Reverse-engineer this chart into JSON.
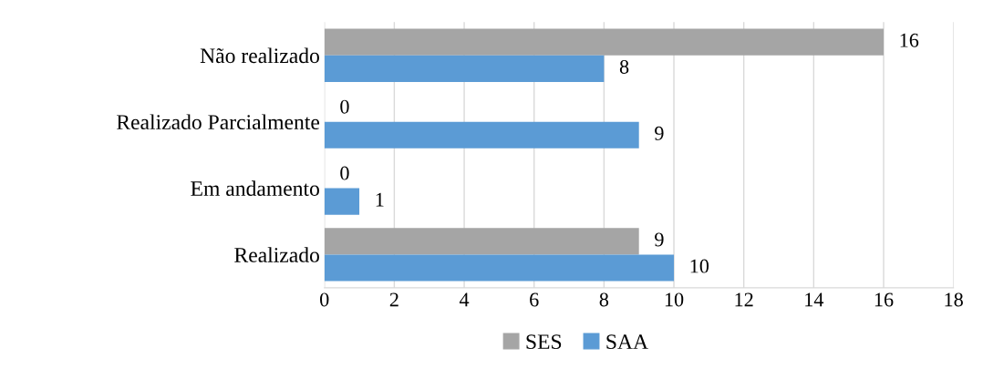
{
  "chart_data": {
    "type": "bar",
    "orientation": "horizontal",
    "categories": [
      "Não realizado",
      "Realizado Parcialmente",
      "Em andamento",
      "Realizado"
    ],
    "series": [
      {
        "name": "SES",
        "color": "#a5a5a5",
        "values": [
          16,
          0,
          0,
          9
        ]
      },
      {
        "name": "SAA",
        "color": "#5b9bd5",
        "values": [
          8,
          9,
          1,
          10
        ]
      }
    ],
    "xlim": [
      0,
      18
    ],
    "xticks": [
      0,
      2,
      4,
      6,
      8,
      10,
      12,
      14,
      16,
      18
    ],
    "grid": "x",
    "legend": "bottom",
    "data_labels": true
  }
}
